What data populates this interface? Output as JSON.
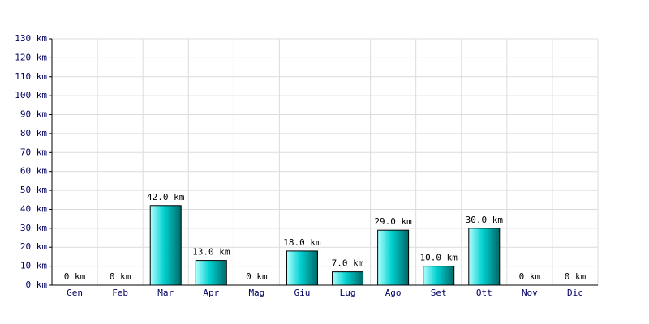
{
  "chart_data": {
    "type": "bar",
    "categories": [
      "Gen",
      "Feb",
      "Mar",
      "Apr",
      "Mag",
      "Giu",
      "Lug",
      "Ago",
      "Set",
      "Ott",
      "Nov",
      "Dic"
    ],
    "values": [
      0,
      0,
      42,
      13,
      0,
      18,
      7,
      29,
      10,
      30,
      0,
      0
    ],
    "value_labels": [
      "0 km",
      "0 km",
      "42.0 km",
      "13.0 km",
      "0 km",
      "18.0 km",
      "7.0 km",
      "29.0 km",
      "10.0 km",
      "30.0 km",
      "0 km",
      "0 km"
    ],
    "color": "#00d0d0",
    "ylim": [
      0,
      130
    ],
    "yticks": [
      {
        "value": 0,
        "label": "0 km"
      },
      {
        "value": 10,
        "label": "10 km"
      },
      {
        "value": 20,
        "label": "20 km"
      },
      {
        "value": 30,
        "label": "30 km"
      },
      {
        "value": 40,
        "label": "40 km"
      },
      {
        "value": 50,
        "label": "50 km"
      },
      {
        "value": 60,
        "label": "60 km"
      },
      {
        "value": 70,
        "label": "70 km"
      },
      {
        "value": 80,
        "label": "80 km"
      },
      {
        "value": 90,
        "label": "90 km"
      },
      {
        "value": 100,
        "label": "100 km"
      },
      {
        "value": 110,
        "label": "110 km"
      },
      {
        "value": 120,
        "label": "120 km"
      },
      {
        "value": 130,
        "label": "130 km"
      }
    ],
    "grid": true
  }
}
